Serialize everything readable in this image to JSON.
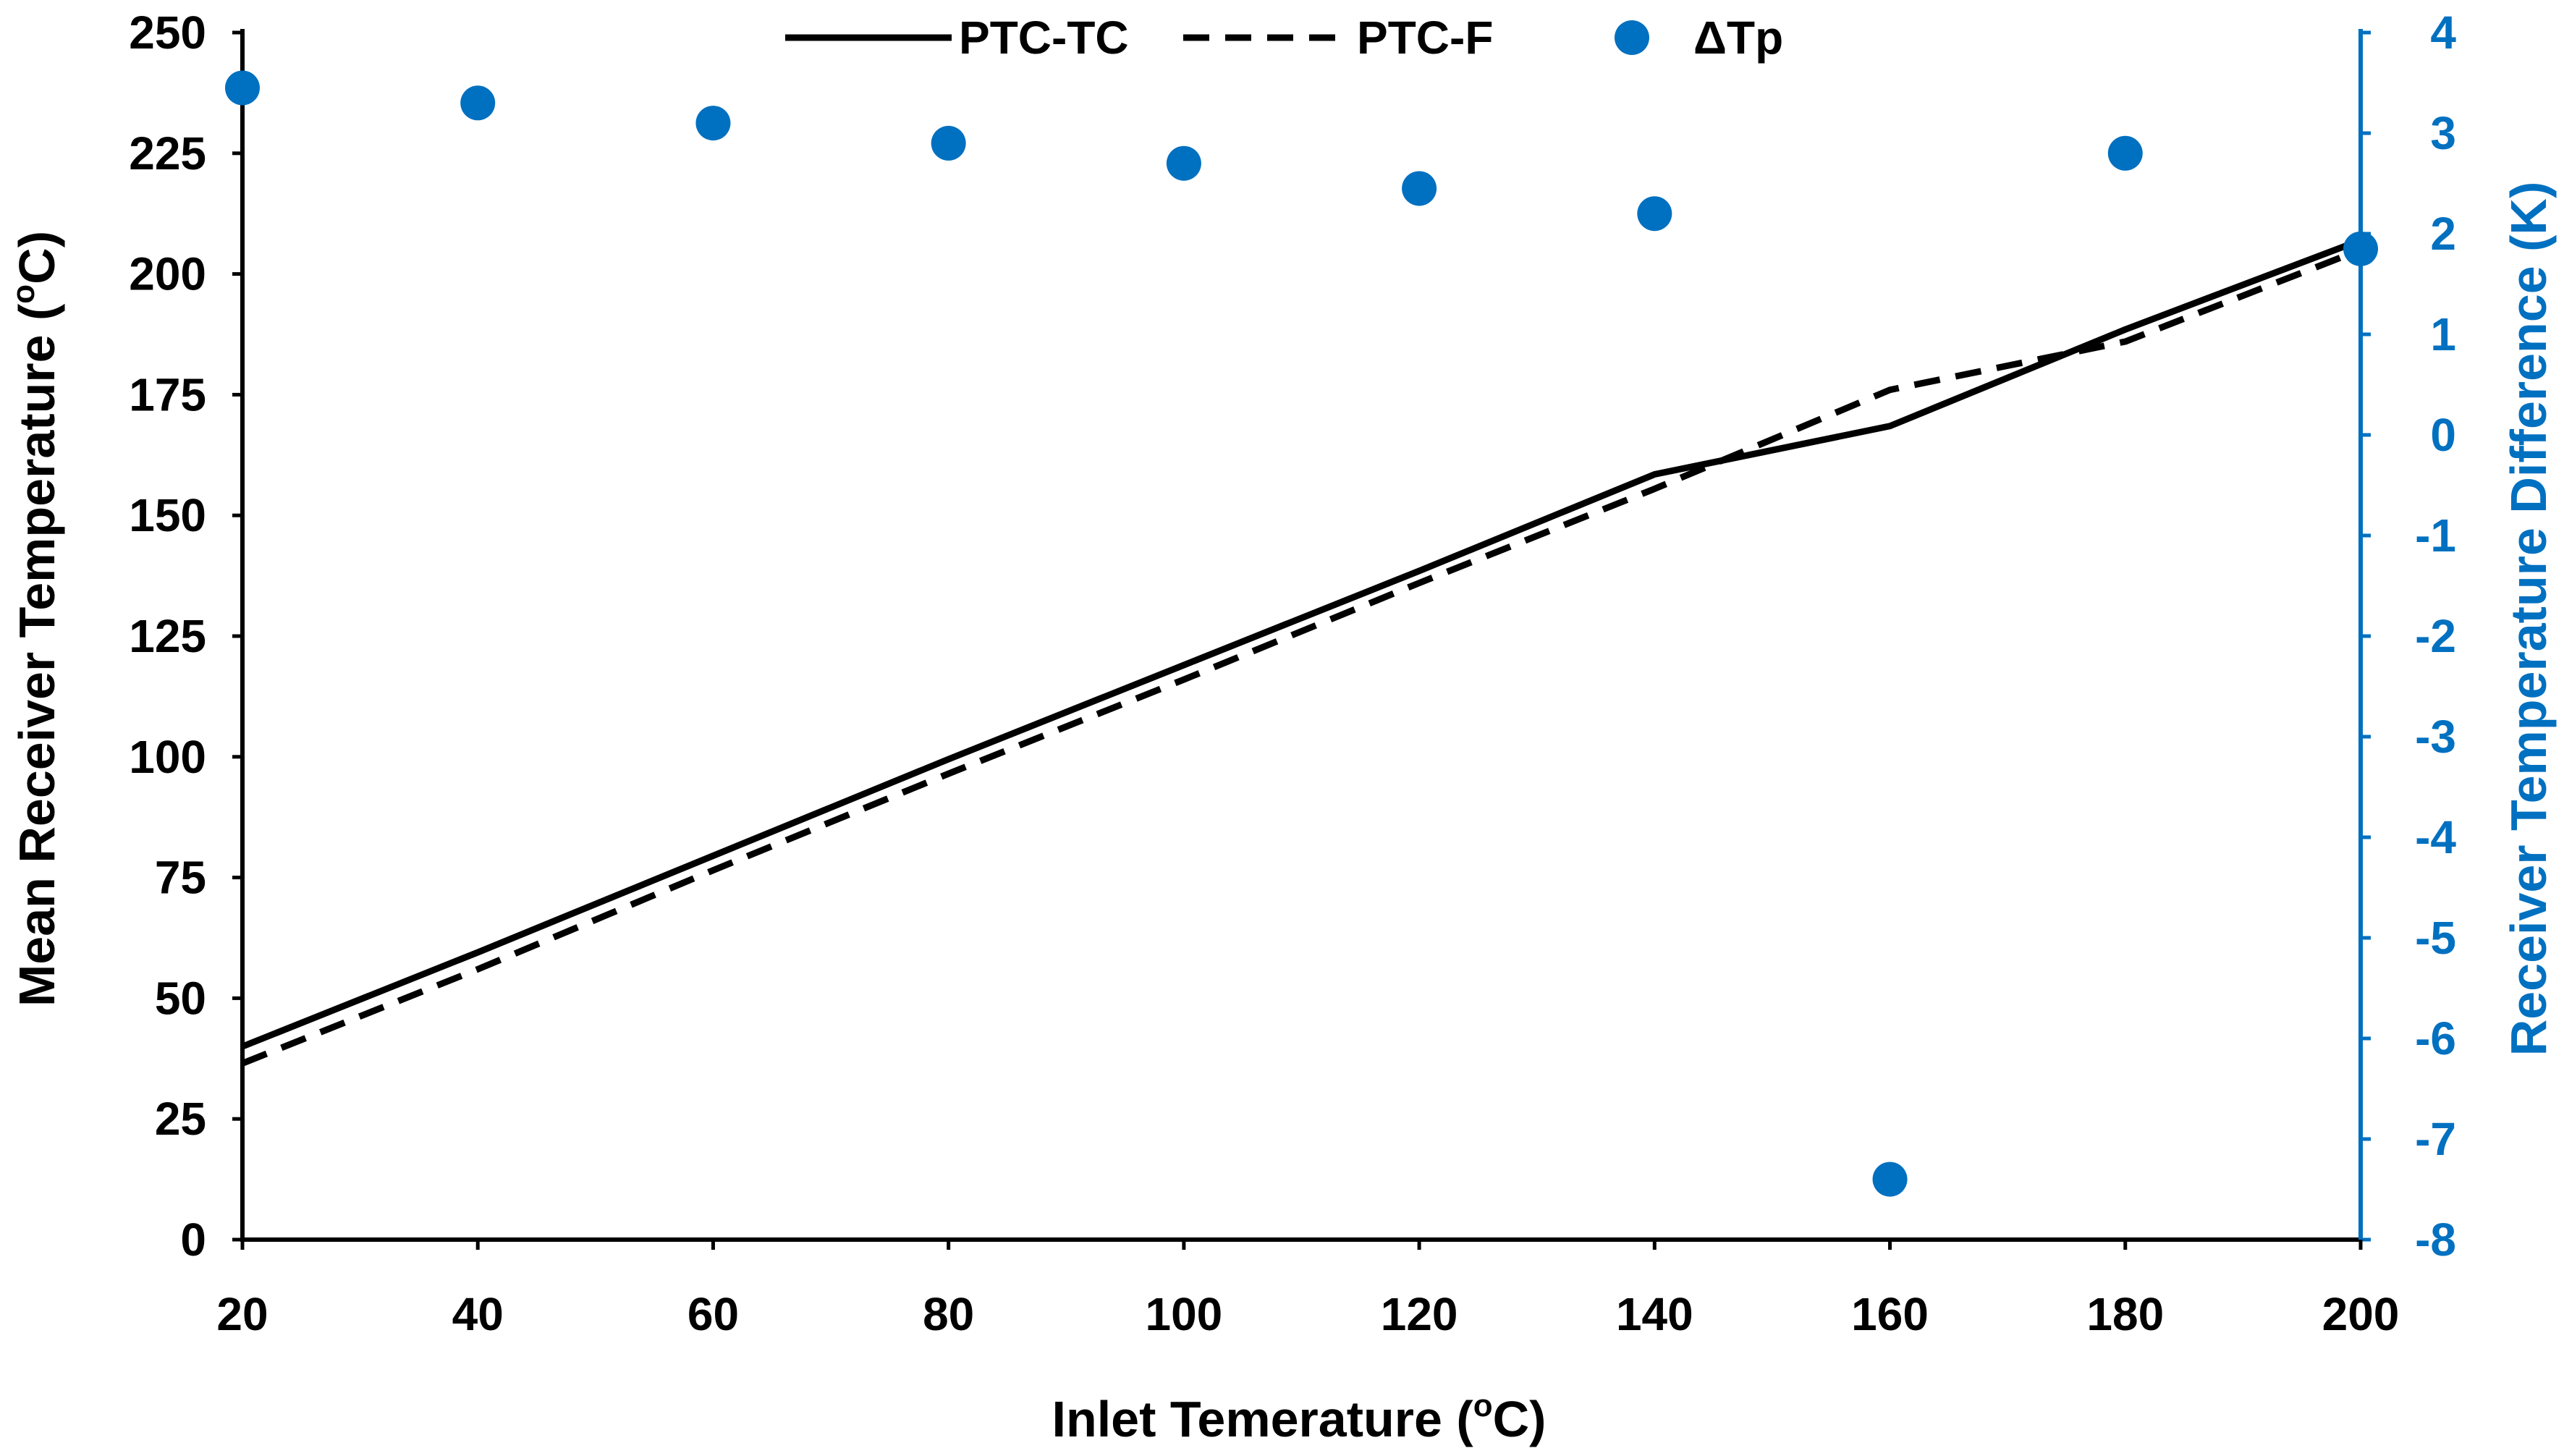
{
  "chart_data": {
    "type": "line",
    "title": "",
    "x": [
      20,
      40,
      60,
      80,
      100,
      120,
      140,
      160,
      180,
      200
    ],
    "xlim": [
      20,
      200
    ],
    "xticks": [
      20,
      40,
      60,
      80,
      100,
      120,
      140,
      160,
      180,
      200
    ],
    "xlabel": "Inlet Temerature (",
    "xlabel_sup": "o",
    "xlabel_tail": "C)",
    "ylabel": "Mean Receiver Temperature (",
    "ylabel_sup": "o",
    "ylabel_tail": "C)",
    "ylim": [
      0,
      250
    ],
    "yticks": [
      0,
      25,
      50,
      75,
      100,
      125,
      150,
      175,
      200,
      225,
      250
    ],
    "y2label": "Receiver Temperature Difference (K)",
    "y2lim": [
      -8,
      4
    ],
    "y2ticks": [
      -8,
      -7,
      -6,
      -5,
      -4,
      -3,
      -2,
      -1,
      0,
      1,
      2,
      3,
      4
    ],
    "legend_position": "top",
    "series": [
      {
        "name": "PTC-TC",
        "axis": "left",
        "style": "solid",
        "color": "#000000",
        "values": [
          40,
          59.5,
          79.5,
          99.5,
          119,
          138.5,
          158.5,
          168.5,
          188.5,
          207
        ]
      },
      {
        "name": "PTC-F",
        "axis": "left",
        "style": "dashed",
        "color": "#000000",
        "values": [
          36.5,
          56,
          76.5,
          96.5,
          116,
          136,
          155.5,
          176,
          186,
          205
        ]
      },
      {
        "name": "ΔTp",
        "axis": "right",
        "style": "markers",
        "color": "#0070C0",
        "values": [
          3.45,
          3.3,
          3.1,
          2.9,
          2.7,
          2.45,
          2.2,
          -7.4,
          2.8,
          1.85
        ]
      }
    ]
  }
}
